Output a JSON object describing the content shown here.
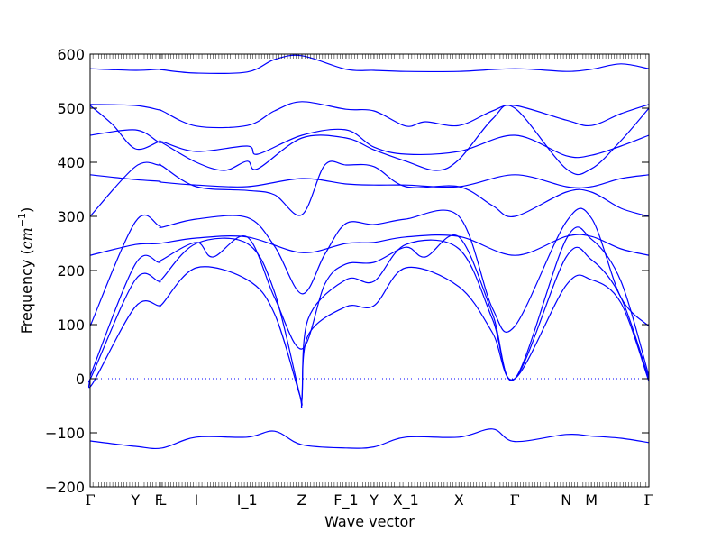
{
  "chart_data": {
    "type": "line",
    "xlabel": "Wave vector",
    "ylabel_text": "Frequency (",
    "ylabel_unit": "cm",
    "ylabel_exp": "−1",
    "ylabel_close": ")",
    "ylim": [
      -200,
      600
    ],
    "yticks": [
      -200,
      -100,
      0,
      100,
      200,
      300,
      400,
      500,
      600
    ],
    "ytick_labels": [
      "−200",
      "−100",
      "0",
      "100",
      "200",
      "300",
      "400",
      "500",
      "600"
    ],
    "xlim": [
      0,
      1
    ],
    "high_symmetry_points": [
      {
        "label": "Γ",
        "x": 0.0
      },
      {
        "label": "Y",
        "x": 0.081
      },
      {
        "label": "F",
        "x": 0.123
      },
      {
        "label": "L",
        "x": 0.129
      },
      {
        "label": "I",
        "x": 0.19
      },
      {
        "label": "I_1",
        "x": 0.281
      },
      {
        "label": "Z",
        "x": 0.379
      },
      {
        "label": "F_1",
        "x": 0.458
      },
      {
        "label": "Y",
        "x": 0.508
      },
      {
        "label": "X_1",
        "x": 0.565
      },
      {
        "label": "X",
        "x": 0.66
      },
      {
        "label": "Γ",
        "x": 0.76
      },
      {
        "label": "N",
        "x": 0.852
      },
      {
        "label": "M",
        "x": 0.897
      },
      {
        "label": "Γ",
        "x": 1.0
      }
    ],
    "zero_line": {
      "y": 0,
      "style": "dotted",
      "color": "#0000ff"
    },
    "line_color": "#0000ff",
    "series": [
      {
        "x": [
          0,
          0.081,
          0.129,
          0.19,
          0.281,
          0.33,
          0.379,
          0.458,
          0.508,
          0.565,
          0.66,
          0.72,
          0.76,
          0.852,
          0.897,
          0.95,
          1.0
        ],
        "values": [
          -115,
          -125,
          -128,
          -108,
          -108,
          -97,
          -122,
          -128,
          -126,
          -108,
          -108,
          -93,
          -116,
          -103,
          -106,
          -110,
          -118
        ]
      },
      {
        "x": [
          0,
          0.005,
          0.081,
          0.123,
          0.129,
          0.19,
          0.281,
          0.33,
          0.375,
          0.379,
          0.39,
          0.458,
          0.508,
          0.565,
          0.66,
          0.72,
          0.76,
          0.852,
          0.897,
          0.95,
          1.0
        ],
        "values": [
          0,
          -8,
          133,
          135,
          138,
          205,
          183,
          120,
          -30,
          -35,
          80,
          133,
          135,
          205,
          170,
          85,
          0,
          173,
          183,
          140,
          -5
        ]
      },
      {
        "x": [
          0,
          0.005,
          0.081,
          0.123,
          0.129,
          0.19,
          0.281,
          0.33,
          0.374,
          0.379,
          0.39,
          0.458,
          0.508,
          0.565,
          0.66,
          0.72,
          0.76,
          0.852,
          0.897,
          0.95,
          1.0
        ],
        "values": [
          0,
          10,
          183,
          180,
          185,
          250,
          250,
          160,
          -25,
          -40,
          110,
          183,
          180,
          248,
          240,
          110,
          0,
          225,
          220,
          150,
          0
        ]
      },
      {
        "x": [
          0,
          0.081,
          0.123,
          0.129,
          0.19,
          0.22,
          0.281,
          0.33,
          0.379,
          0.42,
          0.458,
          0.508,
          0.565,
          0.6,
          0.66,
          0.72,
          0.76,
          0.852,
          0.897,
          0.95,
          1.0
        ],
        "values": [
          5,
          212,
          215,
          220,
          252,
          225,
          262,
          150,
          55,
          175,
          212,
          215,
          243,
          225,
          262,
          120,
          0,
          258,
          258,
          180,
          5
        ]
      },
      {
        "x": [
          0,
          0.081,
          0.123,
          0.129,
          0.19,
          0.281,
          0.33,
          0.379,
          0.42,
          0.458,
          0.508,
          0.565,
          0.66,
          0.72,
          0.76,
          0.852,
          0.897,
          0.95,
          1.0
        ],
        "values": [
          97,
          290,
          283,
          280,
          295,
          298,
          245,
          157,
          230,
          287,
          285,
          295,
          300,
          130,
          97,
          290,
          297,
          150,
          97
        ]
      },
      {
        "x": [
          0,
          0.081,
          0.123,
          0.19,
          0.281,
          0.379,
          0.458,
          0.508,
          0.565,
          0.66,
          0.76,
          0.852,
          0.897,
          0.95,
          1.0
        ],
        "values": [
          228,
          248,
          250,
          260,
          262,
          233,
          250,
          252,
          262,
          263,
          228,
          263,
          263,
          240,
          228
        ]
      },
      {
        "x": [
          0,
          0.081,
          0.123,
          0.129,
          0.19,
          0.281,
          0.33,
          0.379,
          0.42,
          0.458,
          0.508,
          0.565,
          0.66,
          0.72,
          0.76,
          0.852,
          0.897,
          0.95,
          1.0
        ],
        "values": [
          300,
          392,
          395,
          393,
          355,
          348,
          340,
          303,
          395,
          395,
          392,
          355,
          355,
          320,
          300,
          345,
          345,
          315,
          300
        ]
      },
      {
        "x": [
          0,
          0.081,
          0.123,
          0.129,
          0.19,
          0.281,
          0.379,
          0.458,
          0.508,
          0.565,
          0.66,
          0.76,
          0.852,
          0.897,
          0.95,
          1.0
        ],
        "values": [
          377,
          368,
          365,
          363,
          358,
          355,
          370,
          360,
          358,
          358,
          355,
          377,
          355,
          355,
          370,
          377
        ]
      },
      {
        "x": [
          0,
          0.04,
          0.081,
          0.123,
          0.129,
          0.19,
          0.24,
          0.281,
          0.3,
          0.379,
          0.458,
          0.508,
          0.565,
          0.62,
          0.66,
          0.72,
          0.76,
          0.852,
          0.897,
          0.95,
          1.0
        ],
        "values": [
          505,
          470,
          425,
          438,
          436,
          400,
          385,
          402,
          388,
          445,
          445,
          423,
          402,
          385,
          405,
          480,
          500,
          388,
          388,
          440,
          500
        ]
      },
      {
        "x": [
          0,
          0.081,
          0.123,
          0.129,
          0.19,
          0.281,
          0.3,
          0.379,
          0.458,
          0.508,
          0.565,
          0.66,
          0.76,
          0.852,
          0.897,
          0.95,
          1.0
        ],
        "values": [
          450,
          460,
          437,
          438,
          420,
          430,
          415,
          450,
          460,
          428,
          415,
          420,
          450,
          412,
          413,
          430,
          450
        ]
      },
      {
        "x": [
          0,
          0.081,
          0.123,
          0.129,
          0.19,
          0.281,
          0.33,
          0.379,
          0.458,
          0.508,
          0.565,
          0.6,
          0.66,
          0.72,
          0.76,
          0.852,
          0.897,
          0.95,
          1.0
        ],
        "values": [
          507,
          505,
          497,
          495,
          467,
          468,
          495,
          512,
          498,
          495,
          467,
          475,
          468,
          495,
          505,
          478,
          468,
          490,
          507
        ]
      },
      {
        "x": [
          0,
          0.081,
          0.123,
          0.129,
          0.19,
          0.281,
          0.33,
          0.379,
          0.458,
          0.508,
          0.565,
          0.66,
          0.76,
          0.852,
          0.897,
          0.95,
          1.0
        ],
        "values": [
          573,
          570,
          572,
          571,
          565,
          567,
          590,
          597,
          572,
          570,
          568,
          568,
          573,
          568,
          572,
          582,
          573
        ]
      }
    ]
  }
}
